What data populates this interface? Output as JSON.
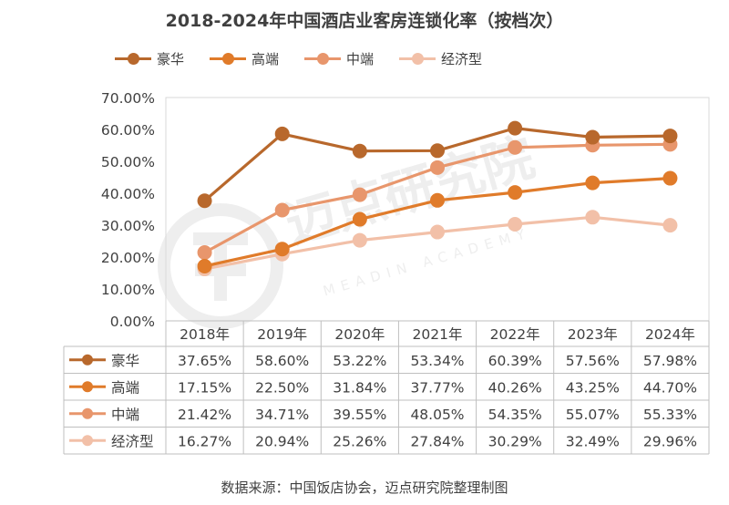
{
  "title": "2018-2024年中国酒店业客房连锁化率（按档次）",
  "source": "数据来源：中国饭店协会，迈点研究院整理制图",
  "watermark": {
    "cn": "迈点研究院",
    "en": "MEADIN ACADEMY"
  },
  "chart_data": {
    "type": "line",
    "title": "2018-2024年中国酒店业客房连锁化率（按档次）",
    "categories": [
      "2018年",
      "2019年",
      "2020年",
      "2021年",
      "2022年",
      "2023年",
      "2024年"
    ],
    "y_ticks": [
      "0.00%",
      "10.00%",
      "20.00%",
      "30.00%",
      "40.00%",
      "50.00%",
      "60.00%",
      "70.00%"
    ],
    "ylim": [
      0,
      70
    ],
    "grid": false,
    "legend": "top",
    "series": [
      {
        "name": "豪华",
        "color": "#b8682c",
        "values": [
          37.65,
          58.6,
          53.22,
          53.34,
          60.39,
          57.56,
          57.98
        ],
        "labels": [
          "37.65%",
          "58.60%",
          "53.22%",
          "53.34%",
          "60.39%",
          "57.56%",
          "57.98%"
        ]
      },
      {
        "name": "高端",
        "color": "#e07b2a",
        "values": [
          17.15,
          22.5,
          31.84,
          37.77,
          40.26,
          43.25,
          44.7
        ],
        "labels": [
          "17.15%",
          "22.50%",
          "31.84%",
          "37.77%",
          "40.26%",
          "43.25%",
          "44.70%"
        ]
      },
      {
        "name": "中端",
        "color": "#e8966c",
        "values": [
          21.42,
          34.71,
          39.55,
          48.05,
          54.35,
          55.07,
          55.33
        ],
        "labels": [
          "21.42%",
          "34.71%",
          "39.55%",
          "48.05%",
          "54.35%",
          "55.07%",
          "55.33%"
        ]
      },
      {
        "name": "经济型",
        "color": "#f2c0a8",
        "values": [
          16.27,
          20.94,
          25.26,
          27.84,
          30.29,
          32.49,
          29.96
        ],
        "labels": [
          "16.27%",
          "20.94%",
          "25.26%",
          "27.84%",
          "30.29%",
          "32.49%",
          "29.96%"
        ]
      }
    ]
  }
}
